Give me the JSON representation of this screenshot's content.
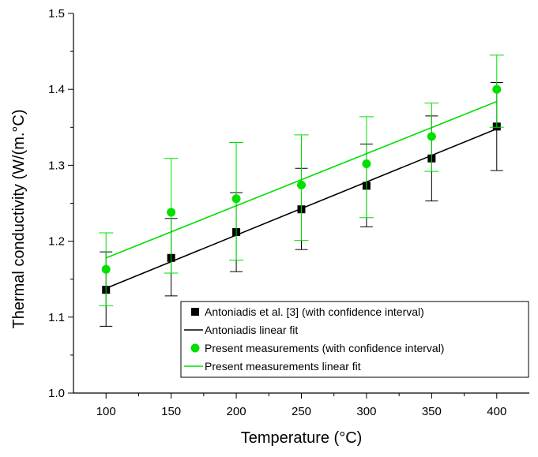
{
  "chart_data": {
    "type": "scatter",
    "title": "",
    "xlabel": "Temperature (°C)",
    "ylabel": "Thermal conductivity (W/(m.°C)",
    "xlim": [
      75,
      425
    ],
    "ylim": [
      1.0,
      1.5
    ],
    "xticks": [
      100,
      150,
      200,
      250,
      300,
      350,
      400
    ],
    "yticks": [
      1.0,
      1.1,
      1.2,
      1.3,
      1.4,
      1.5
    ],
    "xtick_labels": [
      "100",
      "150",
      "200",
      "250",
      "300",
      "350",
      "400"
    ],
    "ytick_labels": [
      "1.0",
      "1.1",
      "1.2",
      "1.3",
      "1.4",
      "1.5"
    ],
    "grid": false,
    "legend_position": "bottom-right",
    "series": [
      {
        "name": "Antoniadis et al. [3] (with confidence interval)",
        "kind": "points",
        "marker": "square",
        "color": "#000000",
        "x": [
          100,
          150,
          200,
          250,
          300,
          350,
          400
        ],
        "y": [
          1.136,
          1.178,
          1.212,
          1.242,
          1.273,
          1.309,
          1.351
        ],
        "err_low": [
          1.088,
          1.128,
          1.16,
          1.189,
          1.219,
          1.253,
          1.293
        ],
        "err_high": [
          1.186,
          1.23,
          1.264,
          1.296,
          1.328,
          1.365,
          1.409
        ]
      },
      {
        "name": "Antoniadis linear fit",
        "kind": "line",
        "color": "#000000",
        "x": [
          100,
          400
        ],
        "y": [
          1.138,
          1.348
        ]
      },
      {
        "name": "Present measurements (with confidence interval)",
        "kind": "points",
        "marker": "circle",
        "color": "#00e000",
        "x": [
          100,
          150,
          200,
          250,
          300,
          350,
          400
        ],
        "y": [
          1.163,
          1.238,
          1.256,
          1.274,
          1.302,
          1.338,
          1.4
        ],
        "err_low": [
          1.115,
          1.158,
          1.175,
          1.201,
          1.231,
          1.292,
          1.35
        ],
        "err_high": [
          1.211,
          1.309,
          1.33,
          1.34,
          1.364,
          1.382,
          1.445
        ]
      },
      {
        "name": "Present measurements linear fit",
        "kind": "line",
        "color": "#00e000",
        "x": [
          100,
          400
        ],
        "y": [
          1.178,
          1.384
        ]
      }
    ]
  }
}
